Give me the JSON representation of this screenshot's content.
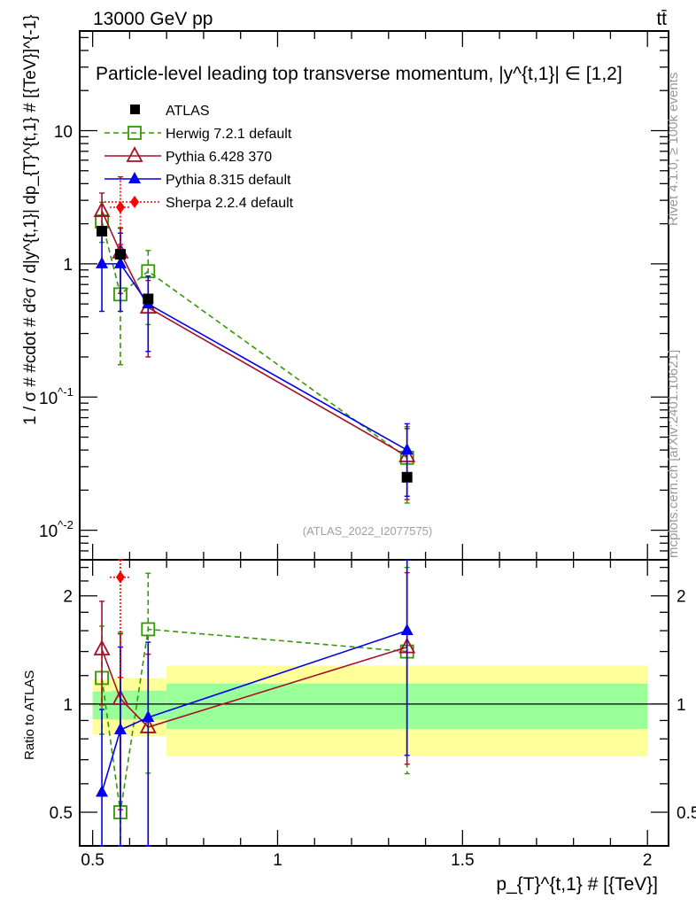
{
  "header": {
    "energy_label": "13000 GeV pp",
    "process_label": "tt̄",
    "rivet_label": "Rivet 4.1.0, ≥ 100k events",
    "mcplots_label": "mcplots.cern.ch [arXiv:2401.10621]",
    "analysis_id": "(ATLAS_2022_I2077575)"
  },
  "chart_data": {
    "type": "scatter",
    "title": "Particle-level leading top transverse momentum, |y^{t,1}| ∈ [1,2]",
    "ylabel": "1 / σ # #cdot # d²σ / d|y^{t,1}| dp_{T}^{t,1} # [{TeV}]^{-1}",
    "xlabel": "p_{T}^{t,1} # [{TeV}]",
    "ratio_ylabel": "Ratio to ATLAS",
    "xlim": [
      0.465,
      2.057
    ],
    "ylim": [
      0.006,
      56
    ],
    "ylog": true,
    "ratio_ylim": [
      0.403,
      2.52
    ],
    "x_ticks": [
      "0.5",
      "1",
      "1.5",
      "2"
    ],
    "x_tick_values": [
      0.5,
      1,
      1.5,
      2
    ],
    "y_ticks": [
      "10",
      "1",
      "10^-1",
      "10^-2"
    ],
    "y_tick_values": [
      10,
      1,
      0.1,
      0.01
    ],
    "ratio_ticks": [
      "2",
      "1",
      "0.5"
    ],
    "ratio_tick_values": [
      2,
      1,
      0.5
    ],
    "legend_position": "top-left",
    "x": [
      0.525,
      0.575,
      0.65,
      1.35
    ],
    "bins": [
      [
        0.5,
        0.55
      ],
      [
        0.55,
        0.6
      ],
      [
        0.6,
        0.7
      ],
      [
        0.7,
        2.0
      ]
    ],
    "data": {
      "name": "ATLAS",
      "values": [
        1.76,
        1.18,
        0.545,
        0.025
      ],
      "band_stat": [
        [
          0.908,
          1.083
        ],
        [
          0.905,
          1.09
        ],
        [
          0.905,
          1.09
        ],
        [
          0.853,
          1.14
        ]
      ],
      "band_total": [
        [
          0.824,
          1.17
        ],
        [
          0.82,
          1.18
        ],
        [
          0.815,
          1.18
        ],
        [
          0.715,
          1.28
        ]
      ]
    },
    "series": [
      {
        "name": "Herwig 7.2.1 default",
        "color": "#339900",
        "marker": "open-square",
        "dash": "6,4",
        "values": [
          2.08,
          0.59,
          0.88,
          0.035
        ],
        "err_lo": [
          1.45,
          0.175,
          0.35,
          0.016
        ],
        "err_hi": [
          2.9,
          1.87,
          1.26,
          0.06
        ]
      },
      {
        "name": "Pythia 6.428 370",
        "color": "#a50f28",
        "marker": "open-triangle",
        "dash": "",
        "values": [
          2.5,
          1.22,
          0.47,
          0.036
        ],
        "err_lo": [
          1.75,
          0.6,
          0.2,
          0.017
        ],
        "err_hi": [
          3.4,
          1.85,
          0.75,
          0.058
        ]
      },
      {
        "name": "Pythia 8.315 default",
        "color": "#0000ee",
        "marker": "filled-triangle",
        "dash": "",
        "values": [
          1.0,
          1.0,
          0.5,
          0.04
        ],
        "err_lo": [
          0.44,
          0.44,
          0.22,
          0.018
        ],
        "err_hi": [
          1.7,
          1.7,
          0.81,
          0.063
        ]
      },
      {
        "name": "Sherpa 2.2.4 default",
        "color": "#ff0000",
        "marker": "filled-diamond",
        "dash": "2,2",
        "values": [
          null,
          2.66,
          null,
          null
        ],
        "err_lo": [
          null,
          1.4,
          null,
          null
        ],
        "err_hi": [
          null,
          4.5,
          null,
          null
        ]
      }
    ]
  }
}
